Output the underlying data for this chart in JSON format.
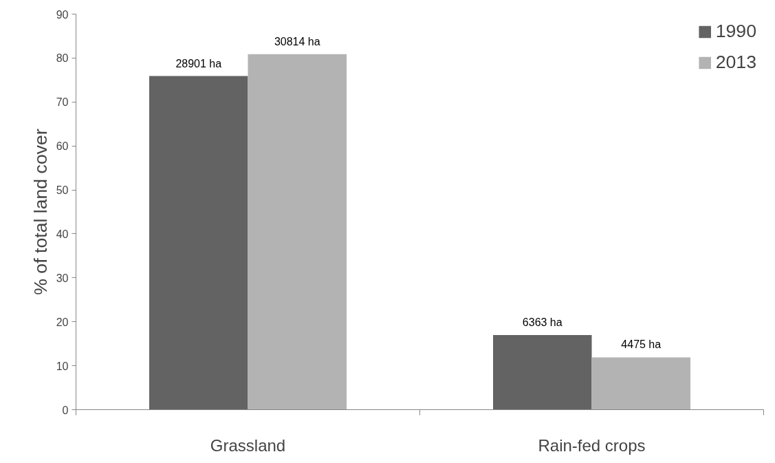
{
  "chart_data": {
    "type": "bar",
    "ylabel": "% of total land cover",
    "categories": [
      "Grassland",
      "Rain-fed crops"
    ],
    "series": [
      {
        "name": "1990",
        "color": "#636363",
        "values": [
          75.9,
          17.0
        ]
      },
      {
        "name": "2013",
        "color": "#b3b3b3",
        "values": [
          80.9,
          11.9
        ]
      }
    ],
    "annotations": [
      {
        "text": "28901 ha",
        "x": "Grassland",
        "y": 75.9
      },
      {
        "text": "30814 ha",
        "x": "Grassland",
        "y": 80.9
      },
      {
        "text": "6363 ha",
        "x": "Rain-fed crops",
        "y": 17.0
      },
      {
        "text": "4475 ha",
        "x": "Rain-fed crops",
        "y": 11.9
      }
    ],
    "ylim": [
      0,
      90
    ],
    "yticks": [
      0,
      10,
      20,
      30,
      40,
      50,
      60,
      70,
      80,
      90
    ],
    "grid": false,
    "legend": "top right"
  }
}
